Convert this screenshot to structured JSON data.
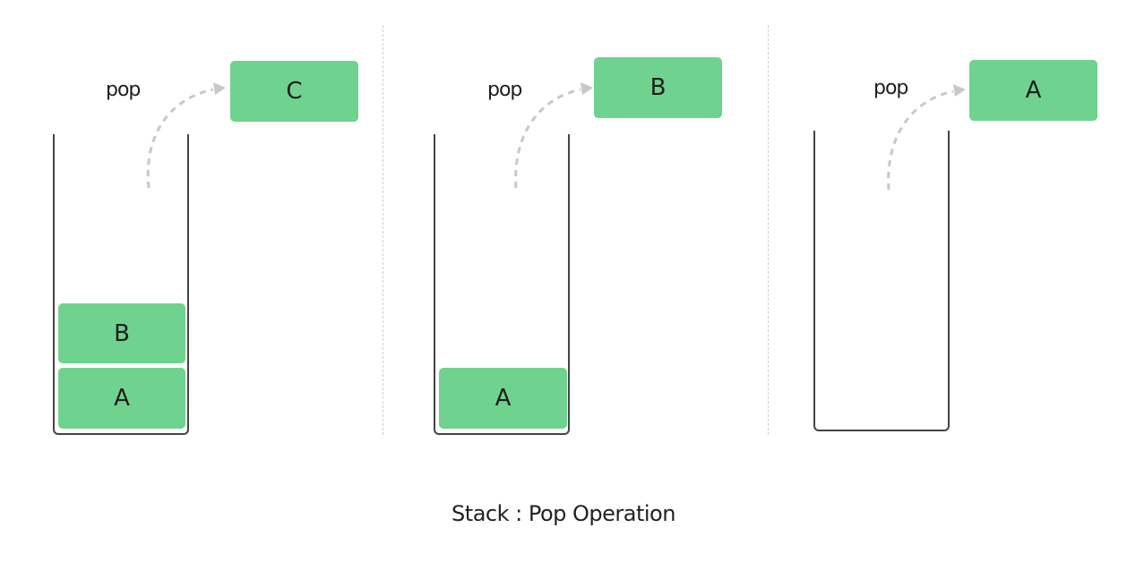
{
  "panels": [
    {
      "op_label": "pop",
      "popped": "C",
      "stack": [
        "B",
        "A"
      ]
    },
    {
      "op_label": "pop",
      "popped": "B",
      "stack": [
        "A"
      ]
    },
    {
      "op_label": "pop",
      "popped": "A",
      "stack": []
    }
  ],
  "caption": "Stack : Pop Operation",
  "colors": {
    "block": "#6fd28e",
    "outline": "#444444",
    "arrow": "#c8c8c8",
    "divider": "#cfcfcf"
  }
}
